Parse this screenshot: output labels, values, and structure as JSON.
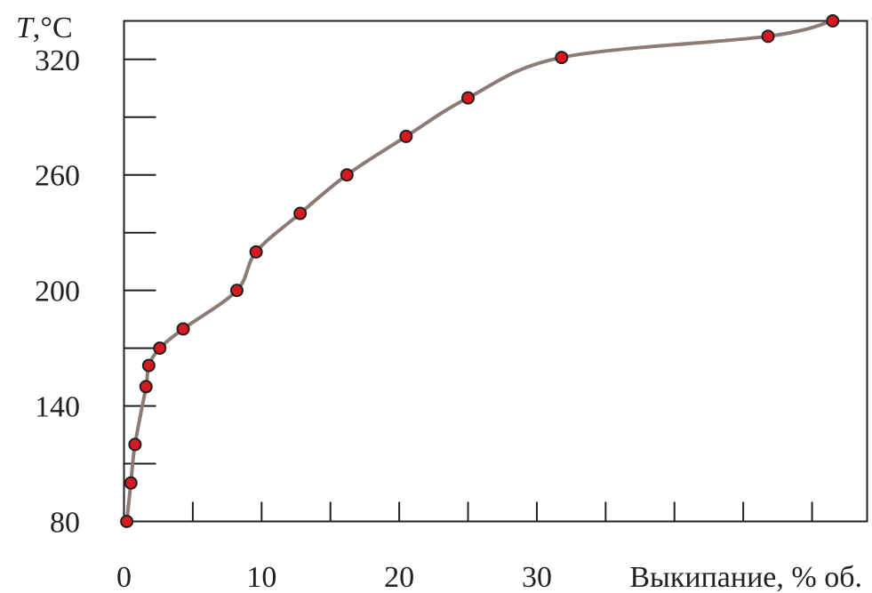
{
  "chart_data": {
    "type": "line",
    "title": "",
    "ylabel_var": "T",
    "ylabel_unit": ",°C",
    "xlabel": "Выкипание, % об.",
    "xlim": [
      0,
      54
    ],
    "ylim": [
      80,
      340
    ],
    "x_ticks": [
      0,
      5,
      10,
      15,
      20,
      25,
      30,
      35,
      40,
      45,
      50
    ],
    "x_tick_labels": [
      {
        "value": 0,
        "label": "0"
      },
      {
        "value": 10,
        "label": "10"
      },
      {
        "value": 20,
        "label": "20"
      },
      {
        "value": 30,
        "label": "30"
      }
    ],
    "y_ticks": [
      80,
      110,
      140,
      170,
      200,
      230,
      260,
      290,
      320
    ],
    "y_tick_labels": [
      {
        "value": 80,
        "label": "80"
      },
      {
        "value": 140,
        "label": "140"
      },
      {
        "value": 200,
        "label": "200"
      },
      {
        "value": 260,
        "label": "260"
      },
      {
        "value": 320,
        "label": "320"
      }
    ],
    "grid": false,
    "series": [
      {
        "x": [
          0.2,
          0.5,
          0.8,
          1.6,
          1.8,
          2.6,
          4.3,
          8.2,
          9.6,
          12.8,
          16.2,
          20.5,
          25.0,
          31.8,
          46.8,
          51.5
        ],
        "y": [
          80,
          100,
          120,
          150,
          161,
          170,
          180,
          200,
          220,
          240,
          260,
          280,
          300,
          321,
          332,
          340
        ]
      }
    ],
    "colors": {
      "line": "#8c7c76",
      "marker_fill": "#d71920",
      "marker_stroke": "#231f20",
      "axis": "#231f20"
    }
  }
}
